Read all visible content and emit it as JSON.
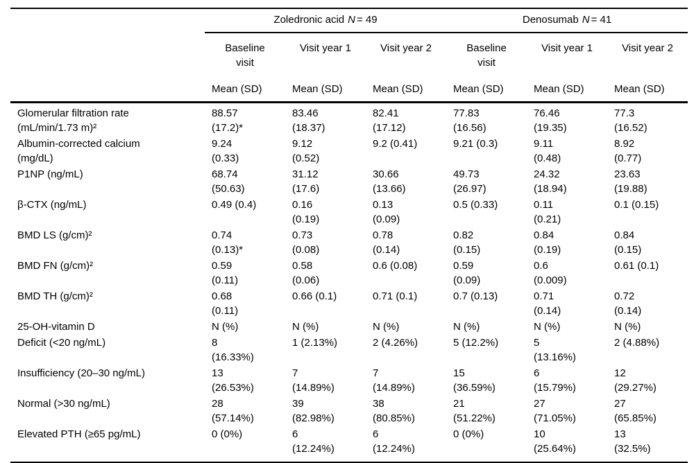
{
  "colors": {
    "background": "#ffffff",
    "text": "#000000",
    "rule": "#000000"
  },
  "table": {
    "groups": [
      {
        "name": "Zoledronic acid",
        "n_label": "N",
        "n_value": "= 49"
      },
      {
        "name": "Denosumab",
        "n_label": "N",
        "n_value": "= 41"
      }
    ],
    "visit_headers": [
      [
        "Baseline",
        "visit"
      ],
      [
        "Visit year 1"
      ],
      [
        "Visit year 2"
      ],
      [
        "Baseline",
        "visit"
      ],
      [
        "Visit year 1"
      ],
      [
        "Visit year 2"
      ]
    ],
    "stat_headers": [
      "Mean (SD)",
      "Mean (SD)",
      "Mean (SD)",
      "Mean (SD)",
      "Mean (SD)",
      "Mean (SD)"
    ],
    "rows": [
      {
        "label": [
          "Glomerular filtration rate",
          "(mL/min/1.73 m)²"
        ],
        "cells": [
          [
            "88.57",
            "(17.2)*"
          ],
          [
            "83.46",
            "(18.37)"
          ],
          [
            "82.41",
            "(17.12)"
          ],
          [
            "77.83",
            "(16.56)"
          ],
          [
            "76.46",
            "(19.35)"
          ],
          [
            "77.3",
            "(16.52)"
          ]
        ]
      },
      {
        "label": [
          "Albumin-corrected calcium",
          "(mg/dL)"
        ],
        "cells": [
          [
            "9.24",
            "(0.33)"
          ],
          [
            "9.12",
            "(0.52)"
          ],
          [
            "9.2 (0.41)"
          ],
          [
            "9.21 (0.3)"
          ],
          [
            "9.11",
            "(0.48)"
          ],
          [
            "8.92",
            "(0.77)"
          ]
        ]
      },
      {
        "label": [
          "P1NP (ng/mL)"
        ],
        "cells": [
          [
            "68.74",
            "(50.63)"
          ],
          [
            "31.12",
            "(17.6)"
          ],
          [
            "30.66",
            "(13.66)"
          ],
          [
            "49.73",
            "(26.97)"
          ],
          [
            "24.32",
            "(18.94)"
          ],
          [
            "23.63",
            "(19.88)"
          ]
        ]
      },
      {
        "label": [
          "β-CTX (ng/mL)"
        ],
        "cells": [
          [
            "0.49 (0.4)"
          ],
          [
            "0.16",
            "(0.19)"
          ],
          [
            "0.13",
            "(0.09)"
          ],
          [
            "0.5 (0.33)"
          ],
          [
            "0.11",
            "(0.21)"
          ],
          [
            "0.1 (0.15)"
          ]
        ]
      },
      {
        "label": [
          "BMD LS (g/cm)²"
        ],
        "cells": [
          [
            "0.74",
            "(0.13)*"
          ],
          [
            "0.73",
            "(0.08)"
          ],
          [
            "0.78",
            "(0.14)"
          ],
          [
            "0.82",
            "(0.15)"
          ],
          [
            "0.84",
            "(0.19)"
          ],
          [
            "0.84",
            "(0.15)"
          ]
        ]
      },
      {
        "label": [
          "BMD FN (g/cm)²"
        ],
        "cells": [
          [
            "0.59",
            "(0.11)"
          ],
          [
            "0.58",
            "(0.06)"
          ],
          [
            "0.6 (0.08)"
          ],
          [
            "0.59",
            "(0.09)"
          ],
          [
            "0.6",
            "(0.009)"
          ],
          [
            "0.61 (0.1)"
          ]
        ]
      },
      {
        "label": [
          "BMD TH (g/cm)²"
        ],
        "cells": [
          [
            "0.68",
            "(0.11)"
          ],
          [
            "0.66 (0.1)"
          ],
          [
            "0.71 (0.1)"
          ],
          [
            "0.7 (0.13)"
          ],
          [
            "0.71",
            "(0.14)"
          ],
          [
            "0.72",
            "(0.14)"
          ]
        ]
      },
      {
        "label": [
          "25-OH-vitamin D"
        ],
        "cells": [
          [
            "N (%)"
          ],
          [
            "N (%)"
          ],
          [
            "N (%)"
          ],
          [
            "N (%)"
          ],
          [
            "N (%)"
          ],
          [
            "N (%)"
          ]
        ]
      },
      {
        "label": [
          "Deficit (<20 ng/mL)"
        ],
        "cells": [
          [
            "8",
            "(16.33%)"
          ],
          [
            "1 (2.13%)"
          ],
          [
            "2 (4.26%)"
          ],
          [
            "5 (12.2%)"
          ],
          [
            "5",
            "(13.16%)"
          ],
          [
            "2 (4.88%)"
          ]
        ]
      },
      {
        "label": [
          "Insufficiency (20–30 ng/mL)"
        ],
        "cells": [
          [
            "13",
            "(26.53%)"
          ],
          [
            "7",
            "(14.89%)"
          ],
          [
            "7",
            "(14.89%)"
          ],
          [
            "15",
            "(36.59%)"
          ],
          [
            "6",
            "(15.79%)"
          ],
          [
            "12",
            "(29.27%)"
          ]
        ]
      },
      {
        "label": [
          "Normal (>30 ng/mL)"
        ],
        "cells": [
          [
            "28",
            "(57.14%)"
          ],
          [
            "39",
            "(82.98%)"
          ],
          [
            "38",
            "(80.85%)"
          ],
          [
            "21",
            "(51.22%)"
          ],
          [
            "27",
            "(71.05%)"
          ],
          [
            "27",
            "(65.85%)"
          ]
        ]
      },
      {
        "label": [
          "Elevated PTH (≥65 pg/mL)"
        ],
        "cells": [
          [
            "0 (0%)"
          ],
          [
            "6",
            "(12.24%)"
          ],
          [
            "6",
            "(12.24%)"
          ],
          [
            "0 (0%)"
          ],
          [
            "10",
            "(25.64%)"
          ],
          [
            "13",
            "(32.5%)"
          ]
        ]
      }
    ]
  }
}
